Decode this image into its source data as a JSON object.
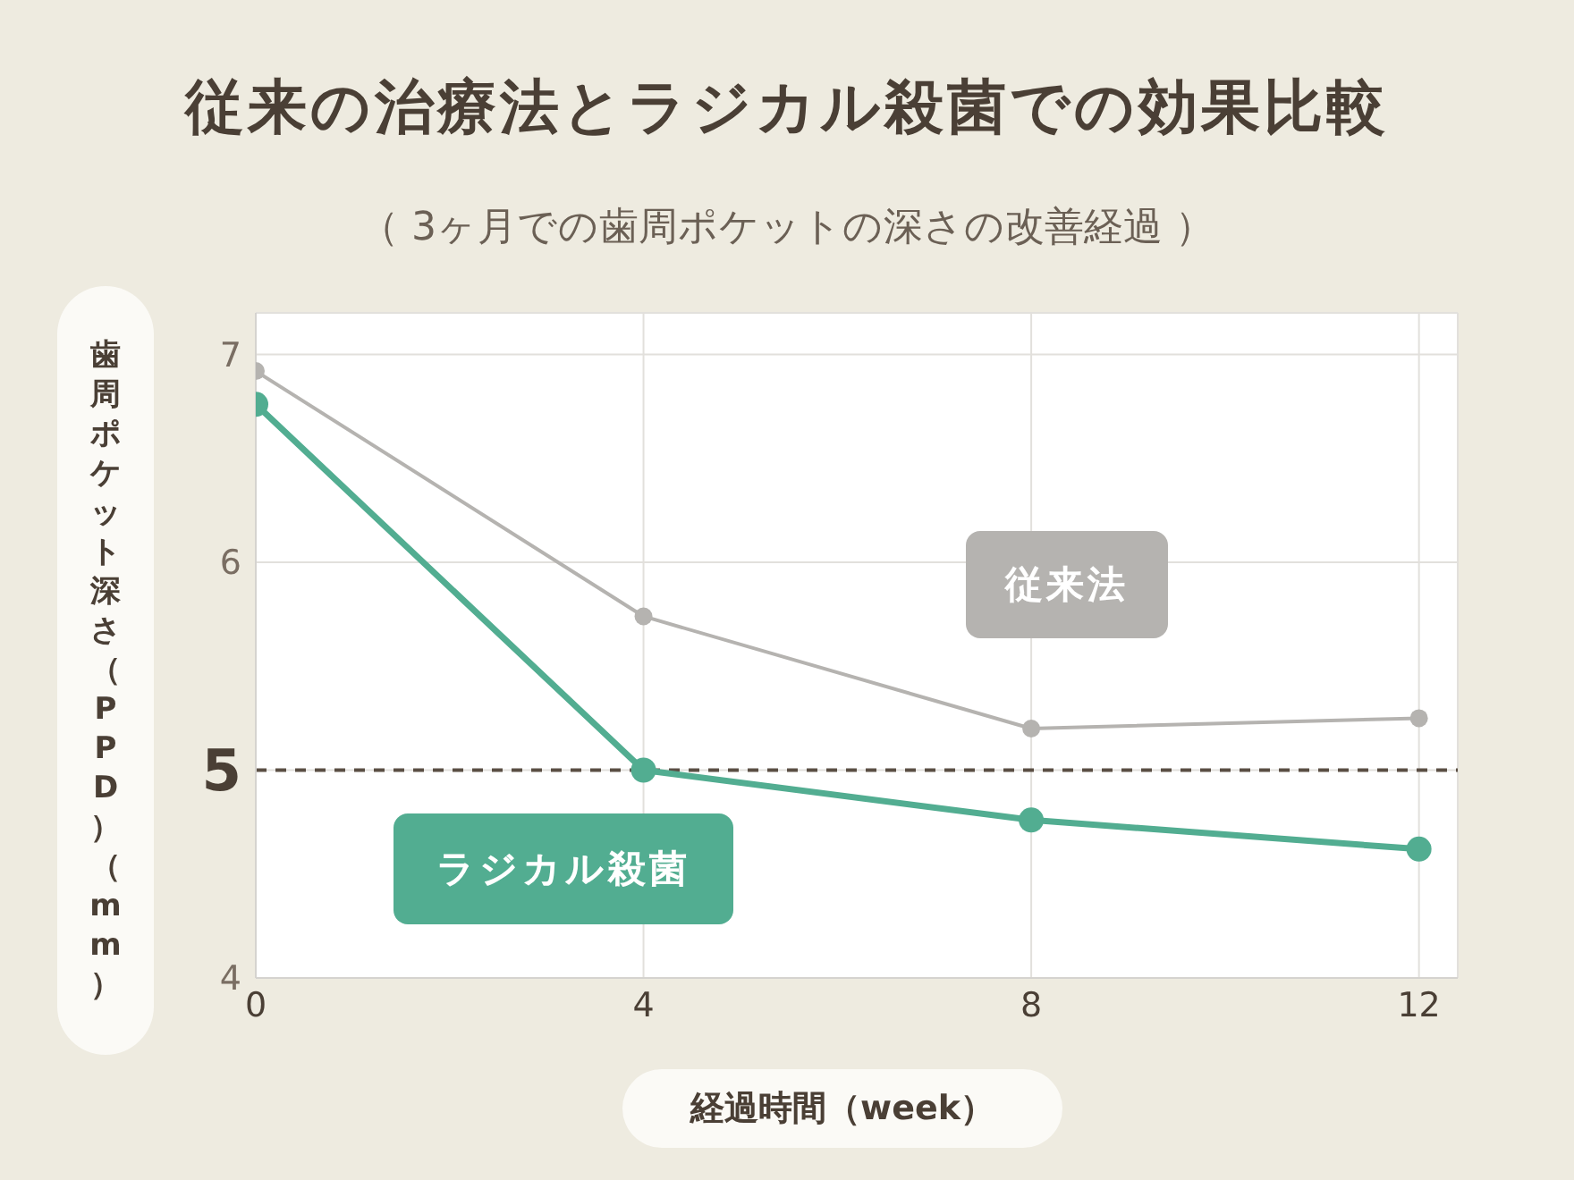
{
  "chart_data": {
    "type": "line",
    "title": "従来の治療法とラジカル殺菌での効果比較",
    "subtitle": "（ 3ヶ月での歯周ポケットの深さの改善経過 ）",
    "xlabel": "経過時間（week）",
    "ylabel": "歯周ポケット深さ（PPD）（mm）",
    "x": [
      0,
      4,
      8,
      12
    ],
    "series": [
      {
        "name": "従来法",
        "color": "#b5b3b0",
        "values": [
          6.92,
          5.74,
          5.2,
          5.25
        ]
      },
      {
        "name": "ラジカル殺菌",
        "color": "#52ad91",
        "values": [
          6.76,
          5.0,
          4.76,
          4.62
        ]
      }
    ],
    "xlim": [
      0,
      12.4
    ],
    "xticks": [
      0,
      4,
      8,
      12
    ],
    "ylim": [
      4,
      7.2
    ],
    "yticks": [
      4,
      {
        "value": 5,
        "label": null
      },
      6,
      7
    ],
    "ref_lines": [
      {
        "axis": "y",
        "value": 5,
        "label": "5",
        "color": "#5a4e44",
        "line_style": "dashed"
      }
    ],
    "grid": true,
    "marker": "circle",
    "line_style": "solid"
  }
}
